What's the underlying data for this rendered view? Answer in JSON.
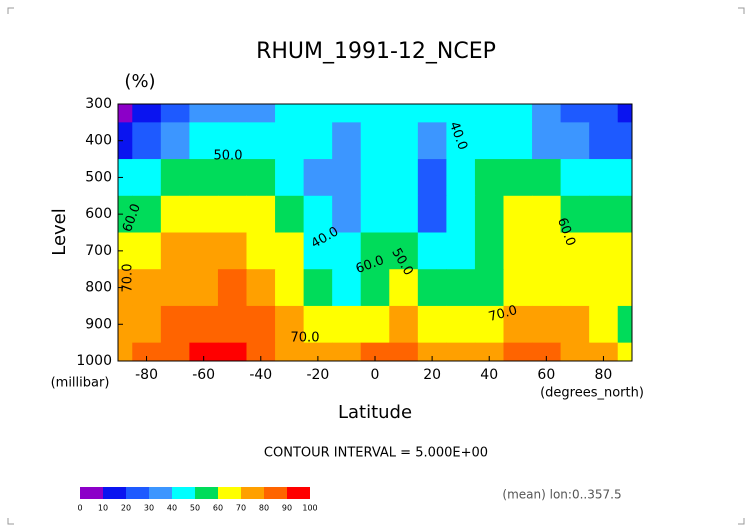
{
  "chart_data": {
    "type": "contour",
    "title": "RHUM_1991-12_NCEP",
    "units": "(%)",
    "x_label": "Latitude",
    "x_unit": "(degrees_north)",
    "y_label": "Level",
    "y_unit": "(millibar)",
    "x": [
      -90,
      -80,
      -70,
      -60,
      -50,
      -40,
      -30,
      -20,
      -10,
      0,
      10,
      20,
      30,
      40,
      50,
      60,
      70,
      80,
      90
    ],
    "y": [
      300,
      400,
      500,
      600,
      700,
      800,
      900,
      1000
    ],
    "z": [
      [
        5,
        15,
        25,
        30,
        35,
        38,
        40,
        42,
        45,
        45,
        45,
        42,
        40,
        45,
        40,
        30,
        25,
        20,
        15
      ],
      [
        15,
        25,
        35,
        42,
        45,
        48,
        45,
        40,
        38,
        40,
        42,
        35,
        40,
        48,
        40,
        35,
        30,
        25,
        25
      ],
      [
        40,
        45,
        52,
        55,
        52,
        50,
        48,
        38,
        35,
        40,
        45,
        28,
        40,
        50,
        55,
        50,
        45,
        45,
        45
      ],
      [
        52,
        58,
        62,
        65,
        63,
        62,
        55,
        40,
        35,
        45,
        48,
        28,
        42,
        55,
        60,
        62,
        55,
        55,
        55
      ],
      [
        62,
        68,
        70,
        72,
        70,
        68,
        60,
        45,
        40,
        50,
        55,
        40,
        48,
        58,
        62,
        68,
        62,
        62,
        65
      ],
      [
        70,
        72,
        75,
        78,
        80,
        75,
        68,
        55,
        45,
        58,
        62,
        55,
        52,
        58,
        65,
        65,
        65,
        65,
        65
      ],
      [
        75,
        78,
        85,
        88,
        85,
        80,
        75,
        68,
        62,
        68,
        70,
        68,
        65,
        68,
        75,
        75,
        70,
        65,
        55
      ],
      [
        72,
        80,
        88,
        92,
        90,
        82,
        78,
        75,
        70,
        85,
        82,
        72,
        70,
        78,
        85,
        80,
        75,
        70,
        65
      ]
    ],
    "xlim": [
      -90,
      90
    ],
    "xticks": [
      -80,
      -60,
      -40,
      -20,
      0,
      20,
      40,
      60,
      80
    ],
    "ylim": [
      1000,
      300
    ],
    "yticks": [
      300,
      400,
      500,
      600,
      700,
      800,
      900,
      1000
    ],
    "levels": [
      0,
      10,
      20,
      30,
      40,
      50,
      60,
      70,
      80,
      90,
      100
    ],
    "colors": [
      "#8c00c8",
      "#0a14f0",
      "#1e5aff",
      "#3c96ff",
      "#00ffff",
      "#00dc5a",
      "#ffff00",
      "#ffa000",
      "#ff6400",
      "#ff0000"
    ],
    "contour_labels": [
      {
        "value": 50,
        "label": "50.0"
      },
      {
        "value": 40,
        "label": "40.0"
      },
      {
        "value": 60,
        "label": "60.0"
      },
      {
        "value": 70,
        "label": "70.0"
      },
      {
        "value": 60,
        "label": "60.0"
      },
      {
        "value": 50,
        "label": "50.0"
      },
      {
        "value": 70,
        "label": "70.0"
      },
      {
        "value": 70,
        "label": "70.0"
      },
      {
        "value": 40,
        "label": "40.0"
      },
      {
        "value": 60,
        "label": "60.0"
      }
    ],
    "contour_interval": "CONTOUR INTERVAL = 5.000E+00",
    "footnote": "(mean) lon:0..357.5"
  }
}
